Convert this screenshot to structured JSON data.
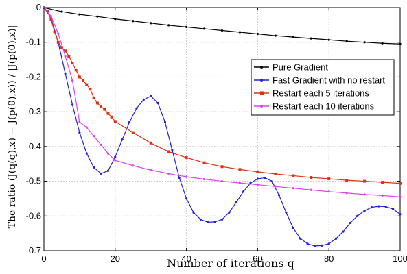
{
  "chart_data": {
    "type": "line",
    "xlabel": "Number of iterations q",
    "ylabel": "The ratio (J(q(q),x) − J(p(0),x)) / |J(p(0),x)|",
    "xlim": [
      0,
      100
    ],
    "ylim": [
      -0.7,
      0
    ],
    "xticks": [
      0,
      20,
      40,
      60,
      80,
      100
    ],
    "yticks": [
      0,
      -0.1,
      -0.2,
      -0.3,
      -0.4,
      -0.5,
      -0.6,
      -0.7
    ],
    "xtick_labels": [
      "0",
      "20",
      "40",
      "60",
      "80",
      "100"
    ],
    "ytick_labels": [
      "0",
      "-0.1",
      "-0.2",
      "-0.3",
      "-0.4",
      "-0.5",
      "-0.6",
      "-0.7"
    ],
    "grid": true,
    "legend_position": "right",
    "series": [
      {
        "name": "Pure Gradient",
        "color": "#000000",
        "marker": "dot",
        "x": [
          0,
          5,
          10,
          15,
          20,
          25,
          30,
          35,
          40,
          45,
          50,
          55,
          60,
          65,
          70,
          75,
          80,
          85,
          90,
          95,
          100
        ],
        "y": [
          0,
          -0.012,
          -0.02,
          -0.026,
          -0.033,
          -0.039,
          -0.045,
          -0.051,
          -0.056,
          -0.061,
          -0.066,
          -0.071,
          -0.076,
          -0.081,
          -0.085,
          -0.089,
          -0.093,
          -0.097,
          -0.1,
          -0.103,
          -0.105
        ]
      },
      {
        "name": "Fast Gradient with no restart",
        "color": "#1f1fe0",
        "marker": "dot",
        "x": [
          0,
          2,
          4,
          6,
          8,
          10,
          12,
          14,
          16,
          18,
          20,
          22,
          24,
          26,
          28,
          30,
          32,
          34,
          36,
          38,
          40,
          42,
          44,
          46,
          48,
          50,
          52,
          54,
          56,
          58,
          60,
          62,
          64,
          66,
          68,
          70,
          72,
          74,
          76,
          78,
          80,
          82,
          84,
          86,
          88,
          90,
          92,
          94,
          96,
          98,
          100
        ],
        "y": [
          0,
          -0.03,
          -0.1,
          -0.19,
          -0.28,
          -0.36,
          -0.42,
          -0.46,
          -0.478,
          -0.47,
          -0.43,
          -0.38,
          -0.33,
          -0.29,
          -0.265,
          -0.255,
          -0.275,
          -0.33,
          -0.41,
          -0.49,
          -0.55,
          -0.59,
          -0.61,
          -0.618,
          -0.617,
          -0.61,
          -0.59,
          -0.56,
          -0.53,
          -0.505,
          -0.493,
          -0.49,
          -0.5,
          -0.54,
          -0.59,
          -0.635,
          -0.665,
          -0.68,
          -0.686,
          -0.685,
          -0.68,
          -0.665,
          -0.645,
          -0.62,
          -0.6,
          -0.585,
          -0.575,
          -0.572,
          -0.573,
          -0.58,
          -0.595
        ]
      },
      {
        "name": "Restart each 5 iterations",
        "color": "#e03010",
        "marker": "square",
        "x": [
          0,
          1,
          2,
          3,
          4,
          5,
          6,
          7,
          8,
          9,
          10,
          11,
          12,
          13,
          14,
          15,
          16,
          17,
          18,
          19,
          20,
          25,
          30,
          35,
          40,
          45,
          50,
          55,
          60,
          65,
          70,
          75,
          80,
          85,
          90,
          95,
          100
        ],
        "y": [
          0,
          -0.01,
          -0.035,
          -0.07,
          -0.1,
          -0.115,
          -0.125,
          -0.14,
          -0.16,
          -0.18,
          -0.2,
          -0.21,
          -0.222,
          -0.235,
          -0.26,
          -0.275,
          -0.285,
          -0.293,
          -0.305,
          -0.315,
          -0.328,
          -0.36,
          -0.39,
          -0.415,
          -0.432,
          -0.447,
          -0.458,
          -0.466,
          -0.473,
          -0.479,
          -0.484,
          -0.489,
          -0.493,
          -0.497,
          -0.5,
          -0.503,
          -0.506
        ]
      },
      {
        "name": "Restart each 10 iterations",
        "color": "#e040f0",
        "marker": "dot",
        "x": [
          0,
          2,
          4,
          6,
          8,
          10,
          12,
          14,
          16,
          18,
          20,
          25,
          30,
          35,
          40,
          45,
          50,
          55,
          60,
          65,
          70,
          75,
          80,
          85,
          90,
          95,
          100
        ],
        "y": [
          0,
          -0.025,
          -0.075,
          -0.14,
          -0.21,
          -0.33,
          -0.345,
          -0.37,
          -0.395,
          -0.42,
          -0.44,
          -0.455,
          -0.468,
          -0.478,
          -0.487,
          -0.494,
          -0.5,
          -0.505,
          -0.51,
          -0.515,
          -0.52,
          -0.525,
          -0.53,
          -0.534,
          -0.538,
          -0.541,
          -0.545
        ]
      }
    ]
  }
}
